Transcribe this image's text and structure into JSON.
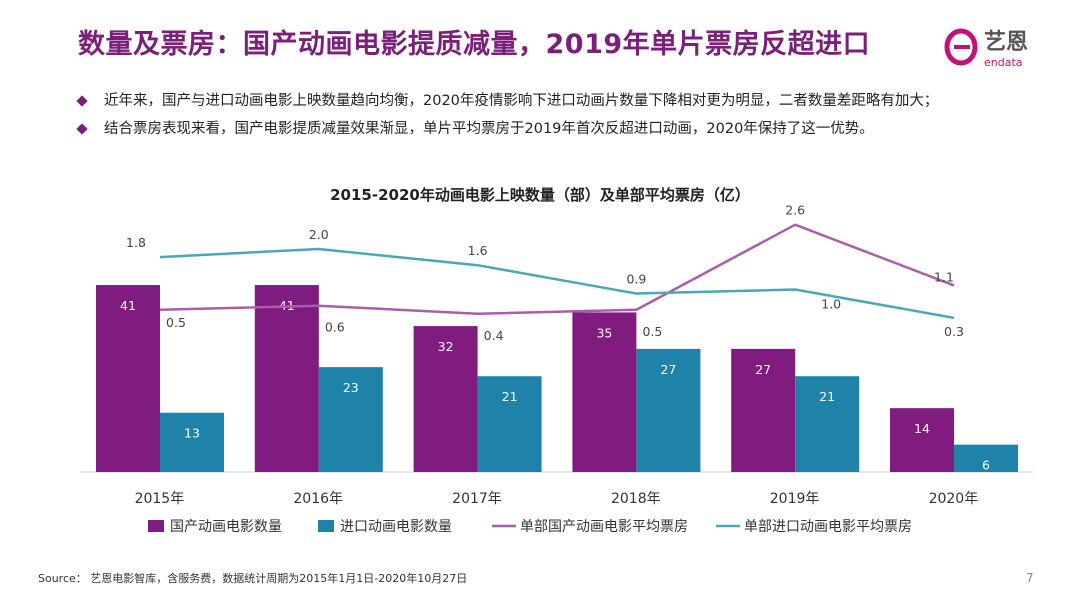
{
  "header": {
    "title": "数量及票房：国产动画电影提质减量，2019年单片票房反超进口",
    "logo_text": "艺恩",
    "logo_sub": "endata"
  },
  "bullets": [
    "近年来，国产与进口动画电影上映数量趋向均衡，2020年疫情影响下进口动画片数量下降相对更为明显，二者数量差距略有加大；",
    "结合票房表现来看，国产电影提质减量效果渐显，单片平均票房于2019年首次反超进口动画，2020年保持了这一优势。"
  ],
  "chart_data": {
    "type": "bar",
    "title": "2015-2020年动画电影上映数量（部）及单部平均票房（亿）",
    "categories": [
      "2015年",
      "2016年",
      "2017年",
      "2018年",
      "2019年",
      "2020年"
    ],
    "series": [
      {
        "name": "国产动画电影数量",
        "type": "bar",
        "values": [
          41,
          41,
          32,
          35,
          27,
          14
        ],
        "color": "#801b7f",
        "labels": [
          "41",
          "41",
          "32",
          "35",
          "27",
          "14"
        ]
      },
      {
        "name": "进口动画电影数量",
        "type": "bar",
        "values": [
          13,
          23,
          21,
          27,
          21,
          6
        ],
        "color": "#1f82a8",
        "labels": [
          "13",
          "23",
          "21",
          "27",
          "21",
          "6"
        ]
      },
      {
        "name": "单部国产动画电影平均票房",
        "type": "line",
        "values": [
          0.5,
          0.6,
          0.4,
          0.5,
          2.6,
          1.1
        ],
        "color": "#a760a7",
        "labels": [
          "0.5",
          "0.6",
          "0.4",
          "0.5",
          "2.6",
          "1.1"
        ]
      },
      {
        "name": "单部进口动画电影平均票房",
        "type": "line",
        "values": [
          1.8,
          2.0,
          1.6,
          0.9,
          1.0,
          0.3
        ],
        "color": "#4aa6bb",
        "labels": [
          "1.8",
          "2.0",
          "1.6",
          "0.9",
          "1.0",
          "0.3"
        ]
      }
    ],
    "legend_position": "bottom",
    "grid": false
  },
  "footer": {
    "source": "Source：  艺恩电影智库，含服务费，数据统计周期为2015年1月1日-2020年10月27日",
    "page": "7"
  }
}
